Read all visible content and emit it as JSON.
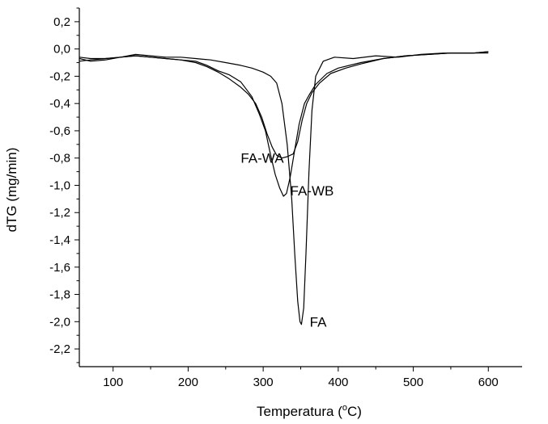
{
  "chart_data": {
    "type": "line",
    "title": "",
    "xlabel": "Temperatura (",
    "xlabel_sup": "o",
    "xlabel_tail": "C)",
    "ylabel": "dTG (mg/min)",
    "xlim": [
      55,
      645
    ],
    "ylim": [
      -2.33,
      0.3
    ],
    "x_ticks": [
      100,
      200,
      300,
      400,
      500,
      600
    ],
    "x_tick_labels": [
      "100",
      "200",
      "300",
      "400",
      "500",
      "600"
    ],
    "y_ticks": [
      0.2,
      0.0,
      -0.2,
      -0.4,
      -0.6,
      -0.8,
      -1.0,
      -1.2,
      -1.4,
      -1.6,
      -1.8,
      -2.0,
      -2.2
    ],
    "y_tick_labels": [
      "0,2",
      "0,0",
      "-0,2",
      "-0,4",
      "-0,6",
      "-0,8",
      "-1,0",
      "-1,2",
      "-1,4",
      "-1,6",
      "-1,8",
      "-2,0",
      "-2,2"
    ],
    "grid": false,
    "legend": "none",
    "series": [
      {
        "name": "FA",
        "points": [
          [
            55,
            -0.07
          ],
          [
            70,
            -0.09
          ],
          [
            90,
            -0.08
          ],
          [
            110,
            -0.06
          ],
          [
            130,
            -0.04
          ],
          [
            150,
            -0.05
          ],
          [
            170,
            -0.06
          ],
          [
            190,
            -0.06
          ],
          [
            210,
            -0.07
          ],
          [
            230,
            -0.08
          ],
          [
            250,
            -0.1
          ],
          [
            270,
            -0.12
          ],
          [
            285,
            -0.14
          ],
          [
            300,
            -0.17
          ],
          [
            310,
            -0.2
          ],
          [
            318,
            -0.25
          ],
          [
            325,
            -0.4
          ],
          [
            332,
            -0.7
          ],
          [
            338,
            -1.1
          ],
          [
            342,
            -1.5
          ],
          [
            346,
            -1.85
          ],
          [
            349,
            -2.0
          ],
          [
            351,
            -2.02
          ],
          [
            354,
            -1.9
          ],
          [
            357,
            -1.5
          ],
          [
            361,
            -0.9
          ],
          [
            365,
            -0.45
          ],
          [
            370,
            -0.2
          ],
          [
            380,
            -0.09
          ],
          [
            395,
            -0.06
          ],
          [
            420,
            -0.07
          ],
          [
            450,
            -0.05
          ],
          [
            480,
            -0.06
          ],
          [
            510,
            -0.04
          ],
          [
            540,
            -0.03
          ],
          [
            570,
            -0.03
          ],
          [
            600,
            -0.03
          ]
        ]
      },
      {
        "name": "FA-WA",
        "points": [
          [
            55,
            -0.09
          ],
          [
            70,
            -0.08
          ],
          [
            90,
            -0.07
          ],
          [
            110,
            -0.06
          ],
          [
            130,
            -0.05
          ],
          [
            150,
            -0.06
          ],
          [
            170,
            -0.07
          ],
          [
            190,
            -0.08
          ],
          [
            210,
            -0.1
          ],
          [
            225,
            -0.13
          ],
          [
            240,
            -0.17
          ],
          [
            255,
            -0.22
          ],
          [
            270,
            -0.28
          ],
          [
            280,
            -0.33
          ],
          [
            290,
            -0.4
          ],
          [
            298,
            -0.5
          ],
          [
            305,
            -0.62
          ],
          [
            312,
            -0.72
          ],
          [
            318,
            -0.78
          ],
          [
            325,
            -0.8
          ],
          [
            332,
            -0.79
          ],
          [
            340,
            -0.77
          ],
          [
            346,
            -0.68
          ],
          [
            352,
            -0.52
          ],
          [
            358,
            -0.4
          ],
          [
            365,
            -0.32
          ],
          [
            375,
            -0.25
          ],
          [
            390,
            -0.18
          ],
          [
            410,
            -0.14
          ],
          [
            430,
            -0.11
          ],
          [
            460,
            -0.07
          ],
          [
            490,
            -0.05
          ],
          [
            520,
            -0.04
          ],
          [
            550,
            -0.03
          ],
          [
            580,
            -0.03
          ],
          [
            600,
            -0.02
          ]
        ]
      },
      {
        "name": "FA-WB",
        "points": [
          [
            55,
            -0.06
          ],
          [
            70,
            -0.07
          ],
          [
            90,
            -0.07
          ],
          [
            110,
            -0.06
          ],
          [
            130,
            -0.05
          ],
          [
            150,
            -0.06
          ],
          [
            170,
            -0.07
          ],
          [
            190,
            -0.08
          ],
          [
            210,
            -0.09
          ],
          [
            225,
            -0.12
          ],
          [
            240,
            -0.16
          ],
          [
            255,
            -0.19
          ],
          [
            270,
            -0.24
          ],
          [
            285,
            -0.35
          ],
          [
            295,
            -0.48
          ],
          [
            303,
            -0.6
          ],
          [
            310,
            -0.78
          ],
          [
            316,
            -0.92
          ],
          [
            322,
            -1.02
          ],
          [
            327,
            -1.08
          ],
          [
            331,
            -1.06
          ],
          [
            336,
            -0.94
          ],
          [
            342,
            -0.74
          ],
          [
            348,
            -0.55
          ],
          [
            355,
            -0.4
          ],
          [
            362,
            -0.33
          ],
          [
            370,
            -0.26
          ],
          [
            385,
            -0.18
          ],
          [
            400,
            -0.14
          ],
          [
            430,
            -0.1
          ],
          [
            460,
            -0.07
          ],
          [
            490,
            -0.05
          ],
          [
            520,
            -0.04
          ],
          [
            550,
            -0.03
          ],
          [
            580,
            -0.03
          ],
          [
            600,
            -0.02
          ]
        ]
      }
    ],
    "annotations": [
      {
        "text": "FA-WA",
        "x": 270,
        "y": -0.8
      },
      {
        "text": "FA-WB",
        "x": 336,
        "y": -1.04
      },
      {
        "text": "FA",
        "x": 362,
        "y": -2.0
      }
    ]
  }
}
